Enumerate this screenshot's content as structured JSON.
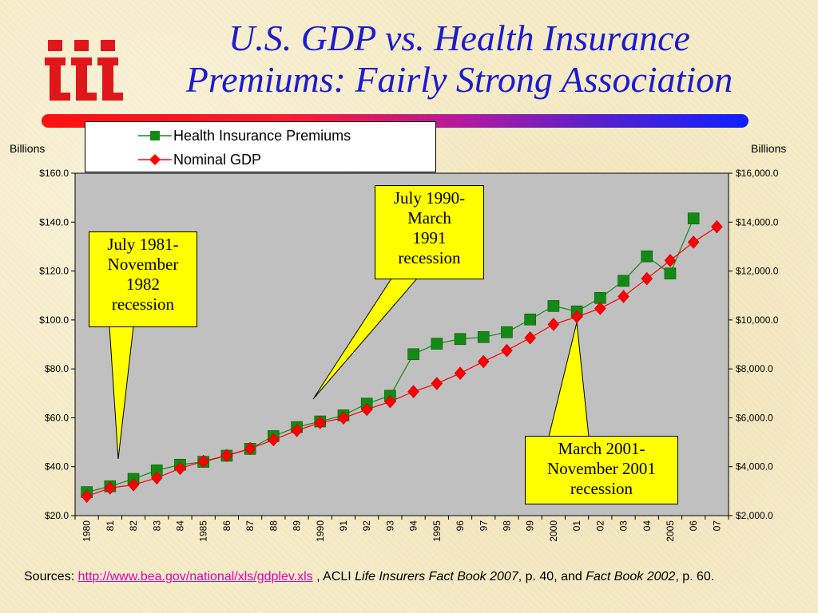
{
  "title": {
    "line1": "U.S. GDP vs. Health Insurance",
    "line2": "Premiums: Fairly Strong Association"
  },
  "logo": {
    "icon": "iii-logo-icon",
    "color": "#e0161b"
  },
  "colors": {
    "premiums": "#138a13",
    "gdp": "#ff0000",
    "plot_background": "#c0c0c0",
    "callout": "#ffff00",
    "title": "#1c1ccf"
  },
  "axis_units": {
    "left": "Billions",
    "right": "Billions"
  },
  "callouts": [
    {
      "lines": [
        "July 1981-",
        "November",
        "1982",
        "recession"
      ]
    },
    {
      "lines": [
        "July 1990-",
        "March",
        "1991",
        "recession"
      ]
    },
    {
      "lines": [
        "March 2001-",
        "November 2001",
        "recession"
      ]
    }
  ],
  "sources": {
    "prefix": "Sources: ",
    "link": "http://www.bea.gov/national/xls/gdplev.xls",
    "text1": " , ACLI ",
    "italic1": "Life Insurers Fact Book 2007",
    "text2": ", p. 40, and ",
    "italic2": "Fact Book 2002",
    "text3": ", p. 60."
  },
  "chart_data": {
    "type": "line",
    "categories": [
      "1980",
      "81",
      "82",
      "83",
      "84",
      "1985",
      "86",
      "87",
      "88",
      "89",
      "1990",
      "91",
      "92",
      "93",
      "94",
      "1995",
      "96",
      "97",
      "98",
      "99",
      "2000",
      "01",
      "02",
      "03",
      "04",
      "2005",
      "06",
      "07"
    ],
    "y_left": {
      "min": 20,
      "max": 160,
      "ticks": [
        "$20.0",
        "$40.0",
        "$60.0",
        "$80.0",
        "$100.0",
        "$120.0",
        "$140.0",
        "$160.0"
      ]
    },
    "y_right": {
      "min": 2000,
      "max": 16000,
      "ticks": [
        "$2,000.0",
        "$4,000.0",
        "$6,000.0",
        "$8,000.0",
        "$10,000.0",
        "$12,000.0",
        "$14,000.0",
        "$16,000.0"
      ]
    },
    "legend_position": "top",
    "grid": false,
    "series": [
      {
        "name": "Health Insurance Premiums",
        "axis": "left",
        "marker": "square",
        "values": [
          29.6,
          32.0,
          35.0,
          38.5,
          40.8,
          42.0,
          44.5,
          47.3,
          52.5,
          56.2,
          58.5,
          61.0,
          65.8,
          69.0,
          86.0,
          90.3,
          92.2,
          93.0,
          95.0,
          100.2,
          105.7,
          103.5,
          109.0,
          116.0,
          126.0,
          119.0,
          141.5,
          null
        ]
      },
      {
        "name": "Nominal GDP",
        "axis": "right",
        "marker": "diamond",
        "values": [
          2790,
          3130,
          3260,
          3540,
          3930,
          4220,
          4460,
          4740,
          5100,
          5480,
          5800,
          5990,
          6340,
          6660,
          7070,
          7400,
          7820,
          8300,
          8750,
          9270,
          9820,
          10130,
          10470,
          10960,
          11690,
          12430,
          13180,
          13810
        ]
      }
    ]
  }
}
